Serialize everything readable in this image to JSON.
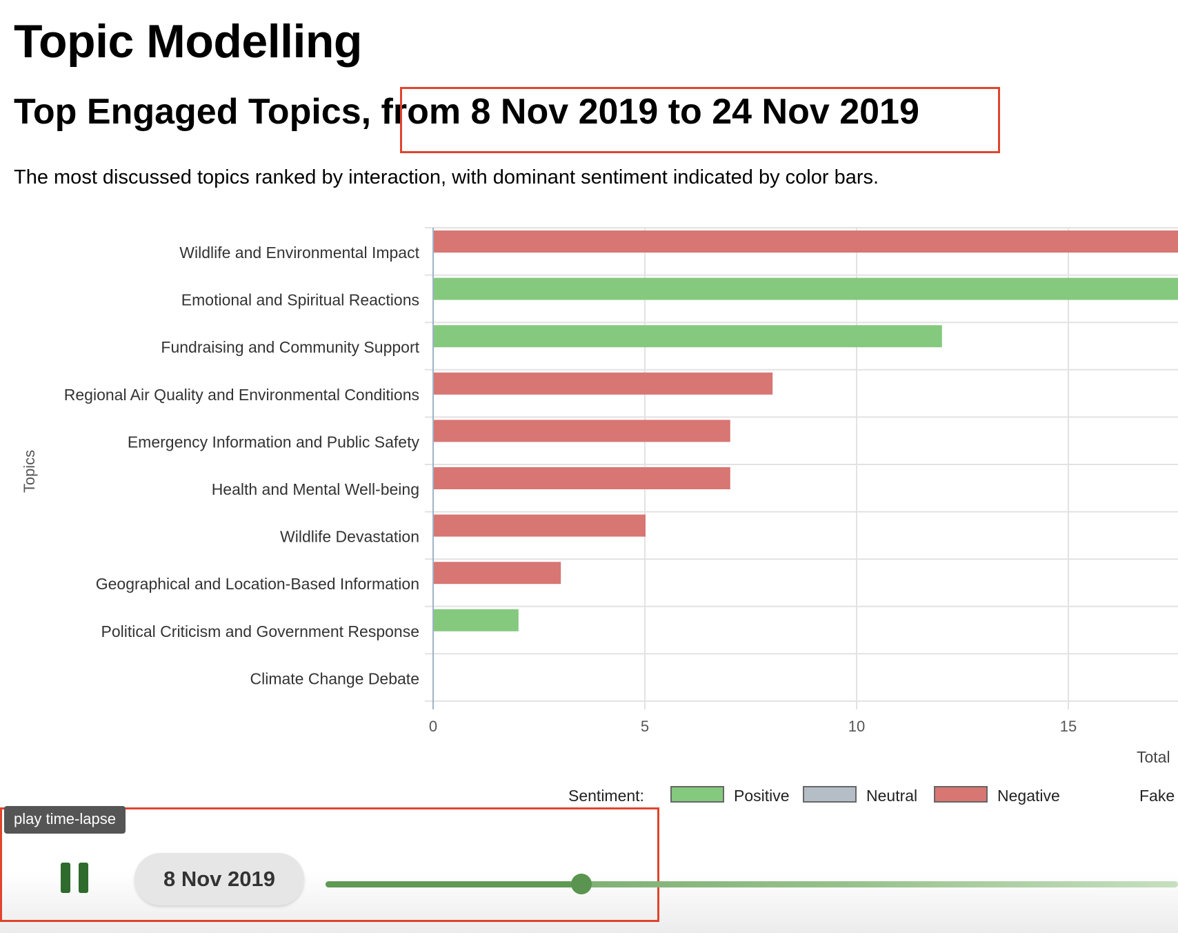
{
  "page": {
    "title": "Topic Modelling",
    "heading_prefix": "Top Engaged Topics,",
    "heading_range": "from 8 Nov 2019 to 24 Nov 2019",
    "description": "The most discussed topics ranked by interaction, with dominant sentiment indicated by color bars."
  },
  "chart_data": {
    "type": "bar",
    "orientation": "horizontal",
    "ylabel": "Topics",
    "xlabel_partial": "Total",
    "categories": [
      "Wildlife and Environmental Impact",
      "Emotional and Spiritual Reactions",
      "Fundraising and Community Support",
      "Regional Air Quality and Environmental Conditions",
      "Emergency Information and Public Safety",
      "Health and Mental Well-being",
      "Wildlife Devastation",
      "Geographical and Location-Based Information",
      "Political Criticism and Government Response",
      "Climate Change Debate"
    ],
    "values": [
      18,
      18,
      12,
      8,
      7,
      7,
      5,
      3,
      2,
      0
    ],
    "sentiment": [
      "Negative",
      "Positive",
      "Positive",
      "Negative",
      "Negative",
      "Negative",
      "Negative",
      "Negative",
      "Positive",
      "Neutral"
    ],
    "xticks": [
      "0",
      "5",
      "10",
      "15"
    ],
    "xlim_visible": [
      0,
      17.5
    ],
    "grid": true,
    "colors": {
      "Positive": "#85c97e",
      "Neutral": "#b5bec6",
      "Negative": "#d77673"
    },
    "legend": {
      "title": "Sentiment:",
      "items": [
        "Positive",
        "Neutral",
        "Negative"
      ],
      "extra": "Fake",
      "placement": "bottom"
    }
  },
  "player": {
    "tooltip": "play time-lapse",
    "date": "8 Nov 2019",
    "progress": 0.3
  }
}
